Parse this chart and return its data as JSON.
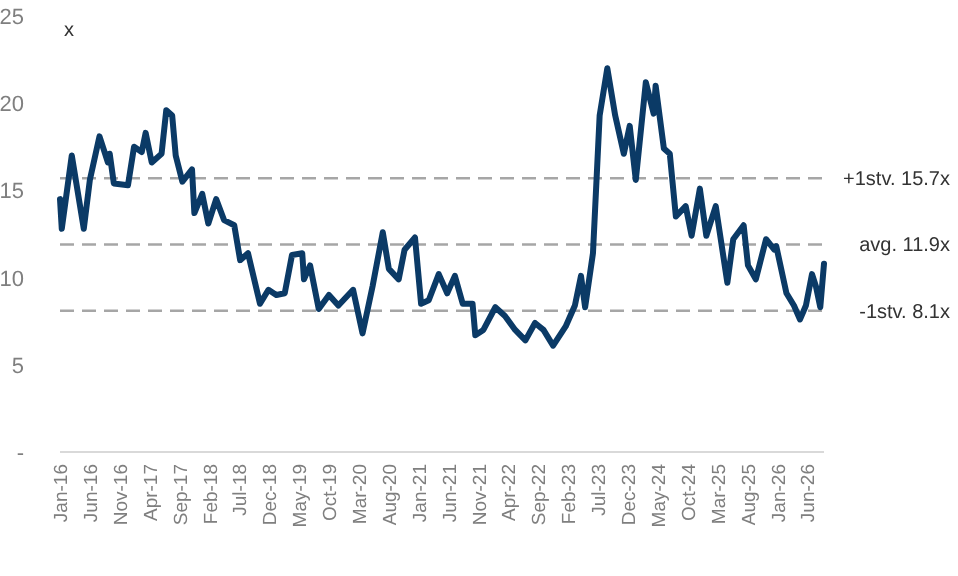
{
  "chart_data": {
    "type": "line",
    "ylabel": "x",
    "color": "#0b3a66",
    "line_style": "solid",
    "marker": "none",
    "grid": false,
    "x": [
      "2016-01-01",
      "2016-01-10",
      "2016-03-01",
      "2016-05-01",
      "2016-06-01",
      "2016-07-20",
      "2016-09-01",
      "2016-09-10",
      "2016-10-01",
      "2016-12-12",
      "2017-01-12",
      "2017-02-20",
      "2017-03-12",
      "2017-04-12",
      "2017-06-01",
      "2017-06-25",
      "2017-07-25",
      "2017-08-12",
      "2017-09-15",
      "2017-11-03",
      "2017-11-15",
      "2017-12-25",
      "2018-01-25",
      "2018-03-06",
      "2018-04-15",
      "2018-06-06",
      "2018-07-06",
      "2018-08-15",
      "2018-10-15",
      "2018-11-27",
      "2019-01-06",
      "2019-02-18",
      "2019-03-27",
      "2019-05-18",
      "2019-05-27",
      "2019-06-27",
      "2019-08-10",
      "2019-10-01",
      "2019-11-18",
      "2020-02-01",
      "2020-03-20",
      "2020-05-10",
      "2020-07-01",
      "2020-08-01",
      "2020-09-20",
      "2020-10-20",
      "2020-12-12",
      "2021-01-12",
      "2021-02-20",
      "2021-04-12",
      "2021-05-25",
      "2021-07-03",
      "2021-08-12",
      "2021-10-01",
      "2021-10-15",
      "2021-11-25",
      "2022-01-25",
      "2022-03-15",
      "2022-05-06",
      "2022-06-27",
      "2022-08-15",
      "2022-09-27",
      "2022-11-15",
      "2023-01-18",
      "2023-03-06",
      "2023-04-06",
      "2023-04-27",
      "2023-06-06",
      "2023-07-10",
      "2023-08-18",
      "2023-09-27",
      "2023-11-10",
      "2023-12-10",
      "2024-01-10",
      "2024-03-01",
      "2024-04-10",
      "2024-04-20",
      "2024-06-01",
      "2024-07-01",
      "2024-08-01",
      "2024-09-20",
      "2024-10-20",
      "2024-12-01",
      "2025-01-03",
      "2025-02-20",
      "2025-04-20",
      "2025-05-20",
      "2025-07-12",
      "2025-08-03",
      "2025-09-12",
      "2025-11-03",
      "2025-12-15",
      "2025-12-25",
      "2026-02-15",
      "2026-03-25",
      "2026-04-25",
      "2026-05-25",
      "2026-06-25",
      "2026-07-15",
      "2026-08-06",
      "2026-08-25"
    ],
    "values": [
      14.5,
      12.8,
      17.0,
      12.8,
      15.6,
      18.1,
      16.6,
      17.1,
      15.4,
      15.3,
      17.5,
      17.2,
      18.3,
      16.6,
      17.1,
      19.6,
      19.3,
      17.0,
      15.5,
      16.2,
      13.7,
      14.8,
      13.1,
      14.5,
      13.3,
      13.0,
      11.0,
      11.4,
      8.5,
      9.3,
      9.0,
      9.1,
      11.3,
      11.4,
      9.9,
      10.7,
      8.2,
      9.0,
      8.4,
      9.3,
      6.8,
      9.5,
      12.6,
      10.5,
      9.9,
      11.6,
      12.3,
      8.5,
      8.7,
      10.2,
      9.1,
      10.1,
      8.5,
      8.5,
      6.7,
      7.0,
      8.3,
      7.8,
      7.0,
      6.4,
      7.4,
      7.0,
      6.1,
      7.2,
      8.4,
      10.1,
      8.3,
      11.4,
      19.3,
      22.0,
      19.3,
      17.1,
      18.7,
      15.6,
      21.2,
      19.4,
      21.0,
      17.4,
      17.1,
      13.5,
      14.1,
      12.4,
      15.1,
      12.4,
      14.1,
      9.7,
      12.2,
      13.0,
      10.7,
      9.9,
      12.2,
      11.6,
      11.8,
      9.1,
      8.4,
      7.6,
      8.4,
      10.2,
      9.5,
      8.3,
      10.8
    ],
    "xlim": [
      "2016-01-01",
      "2026-08-25"
    ],
    "xticks": [
      {
        "value": "2016-01-01",
        "label": "Jan-16"
      },
      {
        "value": "2016-06-01",
        "label": "Jun-16"
      },
      {
        "value": "2016-11-01",
        "label": "Nov-16"
      },
      {
        "value": "2017-04-01",
        "label": "Apr-17"
      },
      {
        "value": "2017-09-01",
        "label": "Sep-17"
      },
      {
        "value": "2018-02-01",
        "label": "Feb-18"
      },
      {
        "value": "2018-07-01",
        "label": "Jul-18"
      },
      {
        "value": "2018-12-01",
        "label": "Dec-18"
      },
      {
        "value": "2019-05-01",
        "label": "May-19"
      },
      {
        "value": "2019-10-01",
        "label": "Oct-19"
      },
      {
        "value": "2020-03-01",
        "label": "Mar-20"
      },
      {
        "value": "2020-08-01",
        "label": "Aug-20"
      },
      {
        "value": "2021-01-01",
        "label": "Jan-21"
      },
      {
        "value": "2021-06-01",
        "label": "Jun-21"
      },
      {
        "value": "2021-11-01",
        "label": "Nov-21"
      },
      {
        "value": "2022-04-01",
        "label": "Apr-22"
      },
      {
        "value": "2022-09-01",
        "label": "Sep-22"
      },
      {
        "value": "2023-02-01",
        "label": "Feb-23"
      },
      {
        "value": "2023-07-01",
        "label": "Jul-23"
      },
      {
        "value": "2023-12-01",
        "label": "Dec-23"
      },
      {
        "value": "2024-05-01",
        "label": "May-24"
      },
      {
        "value": "2024-10-01",
        "label": "Oct-24"
      },
      {
        "value": "2025-03-01",
        "label": "Mar-25"
      },
      {
        "value": "2025-08-01",
        "label": "Aug-25"
      },
      {
        "value": "2026-01-01",
        "label": "Jan-26"
      },
      {
        "value": "2026-06-01",
        "label": "Jun-26"
      }
    ],
    "ylim": [
      0,
      25
    ],
    "yticks": [
      {
        "value": 0,
        "label": "-"
      },
      5,
      10,
      15,
      20,
      25
    ],
    "ref_lines": [
      {
        "axis": "y",
        "value": 15.7,
        "label": "+1stv. 15.7x",
        "color": "#a6a6a6",
        "line_style": "dashed"
      },
      {
        "axis": "y",
        "value": 11.9,
        "label": "avg. 11.9x",
        "color": "#a6a6a6",
        "line_style": "dashed"
      },
      {
        "axis": "y",
        "value": 8.1,
        "label": "-1stv. 8.1x",
        "color": "#a6a6a6",
        "line_style": "dashed"
      }
    ]
  }
}
